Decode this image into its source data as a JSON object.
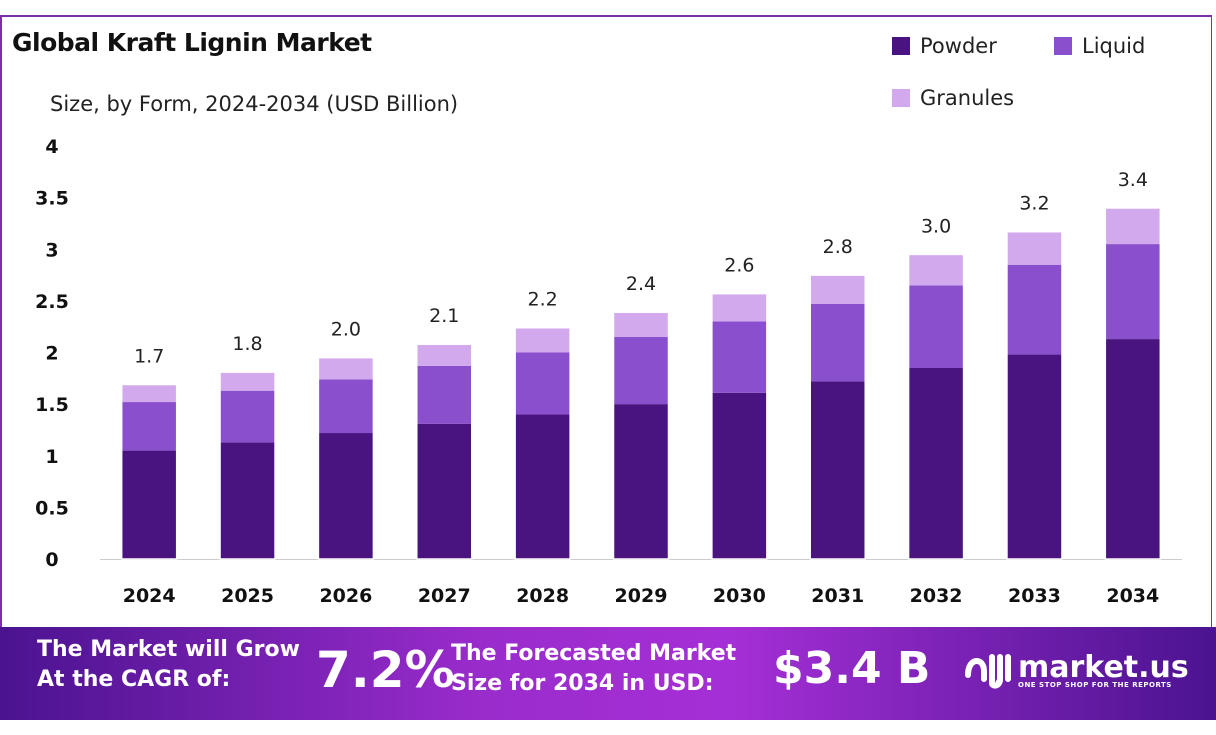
{
  "chart_data": {
    "type": "stacked-bar",
    "title": "Global Kraft Lignin Market",
    "subtitle": "Size, by Form, 2024-2034 (USD Billion)",
    "categories": [
      "2024",
      "2025",
      "2026",
      "2027",
      "2028",
      "2029",
      "2030",
      "2031",
      "2032",
      "2033",
      "2034"
    ],
    "series": [
      {
        "name": "Powder",
        "color": "#4a1480",
        "values": [
          1.05,
          1.13,
          1.22,
          1.31,
          1.4,
          1.5,
          1.61,
          1.72,
          1.85,
          1.98,
          2.13
        ]
      },
      {
        "name": "Liquid",
        "color": "#8a4fcc",
        "values": [
          0.47,
          0.5,
          0.52,
          0.56,
          0.6,
          0.65,
          0.69,
          0.75,
          0.8,
          0.87,
          0.92
        ]
      },
      {
        "name": "Granules",
        "color": "#d3a9ee",
        "values": [
          0.17,
          0.18,
          0.21,
          0.21,
          0.24,
          0.24,
          0.27,
          0.28,
          0.3,
          0.32,
          0.35
        ]
      }
    ],
    "totals_labels": [
      "1.7",
      "1.8",
      "2.0",
      "2.1",
      "2.2",
      "2.4",
      "2.6",
      "2.8",
      "3.0",
      "3.2",
      "3.4"
    ],
    "yticks": [
      "0",
      "0.5",
      "1",
      "1.5",
      "2",
      "2.5",
      "3",
      "3.5",
      "4"
    ],
    "ylim": [
      0,
      4
    ],
    "grid": false,
    "legend_position": "top-right"
  },
  "footer": {
    "cagr_text_1": "The Market will Grow",
    "cagr_text_2": "At the CAGR of:",
    "cagr_value": "7.2%",
    "forecast_text_1": "The Forecasted Market",
    "forecast_text_2": "Size for 2034 in USD:",
    "forecast_value": "$3.4 B",
    "brand": "market.us",
    "brand_tagline": "ONE STOP SHOP FOR THE REPORTS"
  }
}
